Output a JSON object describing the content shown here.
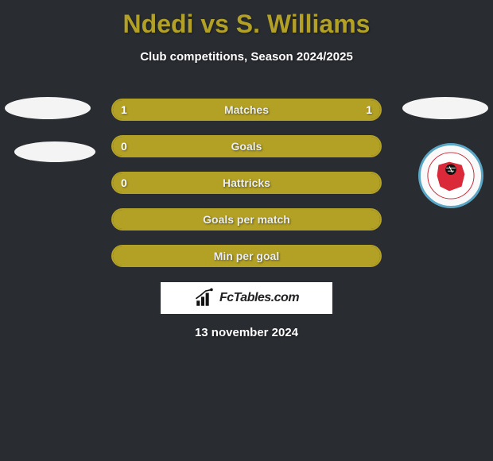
{
  "title": "Ndedi vs S. Williams",
  "subtitle": "Club competitions, Season 2024/2025",
  "date": "13 november 2024",
  "logo_text": "FcTables.com",
  "colors": {
    "background": "#292c31",
    "accent": "#b3a125",
    "title_color": "#b3a125",
    "text": "#ffffff",
    "logo_bg": "#ffffff",
    "badge_ring": "#5aa6c6"
  },
  "badges": {
    "left1": {
      "name": "player-left-badge-1"
    },
    "left2": {
      "name": "player-left-badge-2"
    },
    "right1": {
      "name": "player-right-badge-1"
    },
    "right2": {
      "name": "club-badge-tornadoes"
    }
  },
  "bars": [
    {
      "label": "Matches",
      "left": "1",
      "right": "1",
      "fill_left_pct": 50,
      "fill_right_pct": 50
    },
    {
      "label": "Goals",
      "left": "0",
      "right": "",
      "fill_left_pct": 100,
      "fill_right_pct": 0
    },
    {
      "label": "Hattricks",
      "left": "0",
      "right": "",
      "fill_left_pct": 100,
      "fill_right_pct": 0
    },
    {
      "label": "Goals per match",
      "left": "",
      "right": "",
      "fill_left_pct": 100,
      "fill_right_pct": 0
    },
    {
      "label": "Min per goal",
      "left": "",
      "right": "",
      "fill_left_pct": 100,
      "fill_right_pct": 0
    }
  ]
}
